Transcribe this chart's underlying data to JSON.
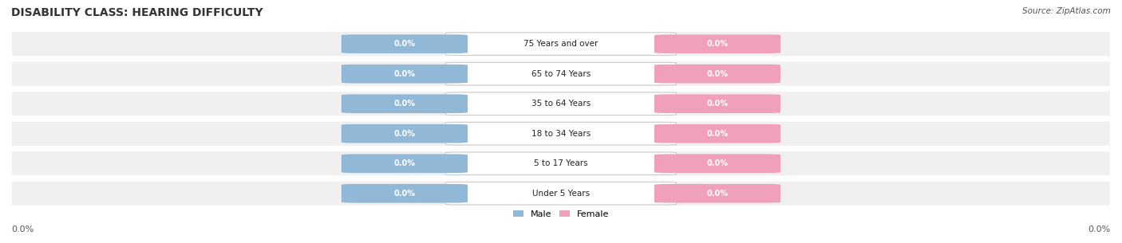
{
  "title": "DISABILITY CLASS: HEARING DIFFICULTY",
  "source": "Source: ZipAtlas.com",
  "categories": [
    "Under 5 Years",
    "5 to 17 Years",
    "18 to 34 Years",
    "35 to 64 Years",
    "65 to 74 Years",
    "75 Years and over"
  ],
  "male_values": [
    0.0,
    0.0,
    0.0,
    0.0,
    0.0,
    0.0
  ],
  "female_values": [
    0.0,
    0.0,
    0.0,
    0.0,
    0.0,
    0.0
  ],
  "male_color": "#92b8d8",
  "female_color": "#f0a0b8",
  "bar_bg_color": "#e8e8e8",
  "row_bg_color": "#f0f0f0",
  "label_color": "#333333",
  "title_color": "#333333",
  "axis_label": "0.0%",
  "figsize": [
    14.06,
    3.05
  ],
  "dpi": 100
}
